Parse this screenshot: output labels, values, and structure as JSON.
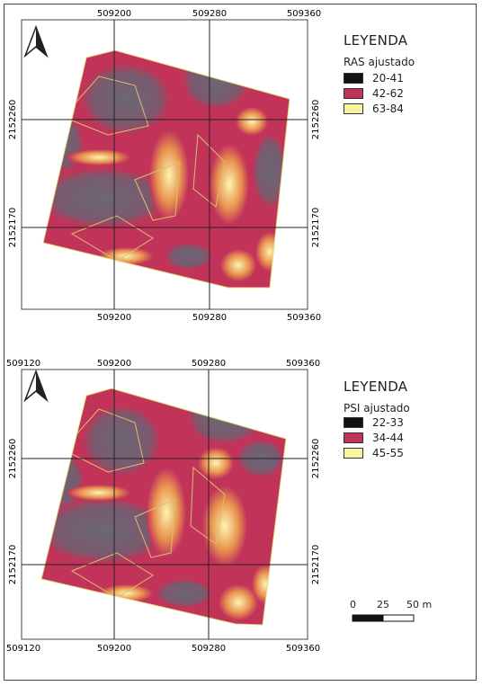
{
  "map1": {
    "legend": {
      "title": "LEYENDA",
      "subtitle": "RAS ajustado",
      "items": [
        {
          "label": "20-41",
          "color": "#111111"
        },
        {
          "label": "42-62",
          "color": "#c2335a"
        },
        {
          "label": "63-84",
          "color": "#f8f3a0"
        }
      ]
    },
    "x_ticks_top": [
      "509200",
      "509280",
      "509360"
    ],
    "x_ticks_bottom": [
      "509200",
      "509280",
      "509360"
    ],
    "y_ticks": [
      "2152260",
      "2152170"
    ]
  },
  "map2": {
    "legend": {
      "title": "LEYENDA",
      "subtitle": "PSI ajustado",
      "items": [
        {
          "label": "22-33",
          "color": "#111111"
        },
        {
          "label": "34-44",
          "color": "#c2335a"
        },
        {
          "label": "45-55",
          "color": "#f8f3a0"
        }
      ]
    },
    "x_ticks_top": [
      "509120",
      "509200",
      "509280",
      "509360"
    ],
    "x_ticks_bottom": [
      "509120",
      "509200",
      "509280",
      "509360"
    ],
    "y_ticks": [
      "2152260",
      "2152170"
    ]
  },
  "scalebar": {
    "labels": [
      "0",
      "25",
      "50 m"
    ]
  },
  "colors": {
    "low": "#6f6a78",
    "mid": "#c2335a",
    "high": "#f8f3a0",
    "contour": "#d8c070"
  }
}
